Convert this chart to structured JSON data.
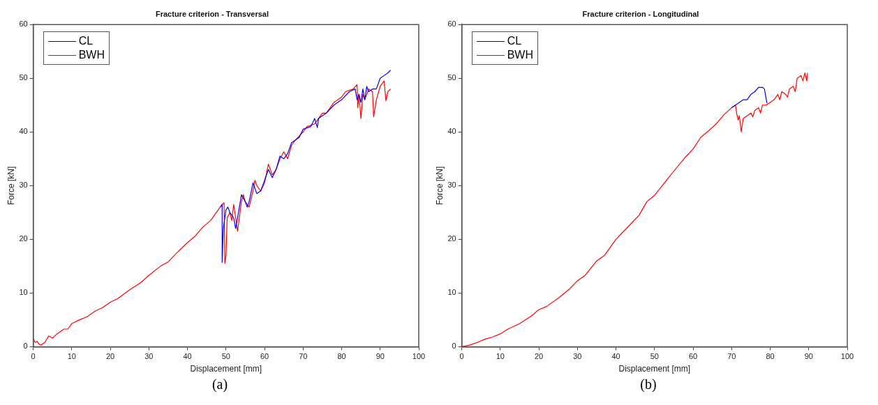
{
  "chart_data": [
    {
      "type": "line",
      "title": "Fracture criterion - Transversal",
      "xlabel": "Displacement [mm]",
      "ylabel": "Force [kN]",
      "annotations": [
        "(a)"
      ],
      "xlim": [
        0,
        100
      ],
      "xticks": [
        0,
        10,
        20,
        30,
        40,
        50,
        60,
        70,
        80,
        90,
        100
      ],
      "ylim": [
        0,
        60
      ],
      "yticks": [
        0,
        10,
        20,
        30,
        40,
        50,
        60
      ],
      "grid": false,
      "legend": "top left",
      "marker": "none",
      "line_style": "solid",
      "series": [
        {
          "name": "CL",
          "color": "#0000ff",
          "x": [
            48.5,
            49,
            49,
            49.3,
            50,
            50.5,
            51,
            52,
            52.5,
            53,
            54,
            55,
            55.5,
            56,
            57,
            58,
            59,
            60,
            61,
            62,
            63,
            64,
            65,
            66,
            67,
            69,
            70,
            72,
            73,
            73.7,
            74,
            76,
            78,
            80,
            82,
            83.5,
            84,
            84.5,
            85,
            85.5,
            86,
            86.5,
            87,
            88,
            89,
            90,
            91,
            92,
            92.7
          ],
          "values": [
            26,
            26.5,
            15.7,
            22,
            25.5,
            26,
            25,
            24,
            22,
            24,
            28.3,
            27,
            26,
            27,
            30.5,
            28.5,
            29,
            31,
            33,
            31.5,
            33,
            35.5,
            35,
            36,
            38,
            39,
            40.5,
            41,
            42.5,
            40.8,
            42.5,
            43.5,
            45,
            46,
            47.5,
            48,
            46,
            47,
            45.5,
            48,
            46,
            48.5,
            47.5,
            48,
            48,
            50,
            50.5,
            51,
            51.5
          ]
        },
        {
          "name": "BWH",
          "color": "#ff0000",
          "x": [
            0,
            0.5,
            1,
            1.5,
            2,
            3,
            4,
            5,
            6,
            8,
            9,
            10,
            12,
            14,
            16,
            18,
            20,
            22,
            25,
            28,
            30,
            33,
            35,
            37,
            40,
            42,
            44,
            46,
            48,
            49,
            49.5,
            49.7,
            50,
            50.3,
            51,
            51.5,
            52,
            53,
            54,
            54.5,
            55,
            56,
            57,
            57.5,
            58,
            59,
            60,
            61,
            62,
            63,
            64,
            65,
            66,
            67,
            68,
            70,
            71,
            73,
            75,
            76,
            78,
            80,
            81,
            83,
            84,
            84.2,
            84.5,
            85,
            85.5,
            86,
            87,
            88,
            88.3,
            89,
            90,
            91,
            91.5,
            92,
            92.7
          ],
          "values": [
            1.5,
            0.8,
            1,
            0.5,
            0.3,
            0.8,
            2,
            1.6,
            2.3,
            3.3,
            3.3,
            4.3,
            5,
            5.6,
            6.6,
            7.3,
            8.3,
            9,
            10.6,
            12,
            13.3,
            15,
            15.8,
            17.3,
            19.4,
            20.6,
            22.3,
            23.5,
            25.5,
            26.5,
            26.8,
            15.5,
            17,
            24,
            25,
            23.5,
            26.5,
            21.5,
            27,
            28.3,
            27,
            26,
            29,
            31,
            30,
            29,
            30.5,
            34,
            32,
            33,
            35,
            36.3,
            35,
            37.5,
            38.5,
            40,
            41,
            41.5,
            43.5,
            43.5,
            45.5,
            46.5,
            47.5,
            48,
            48.8,
            44.5,
            47,
            42.5,
            47,
            46,
            48,
            47.5,
            42.8,
            46,
            48.5,
            49.5,
            45.8,
            47.5,
            48
          ]
        }
      ]
    },
    {
      "type": "line",
      "title": "Fracture criterion - Longitudinal",
      "xlabel": "Displacement [mm]",
      "ylabel": "Force [kN]",
      "annotations": [
        "(b)"
      ],
      "xlim": [
        0,
        100
      ],
      "xticks": [
        0,
        10,
        20,
        30,
        40,
        50,
        60,
        70,
        80,
        90,
        100
      ],
      "ylim": [
        0,
        60
      ],
      "yticks": [
        0,
        10,
        20,
        30,
        40,
        50,
        60
      ],
      "grid": false,
      "legend": "top left",
      "marker": "none",
      "line_style": "solid",
      "series": [
        {
          "name": "CL",
          "color": "#0000ff",
          "x": [
            70,
            71,
            72,
            73,
            74,
            75,
            76,
            77,
            78,
            78.5,
            79,
            79.2
          ],
          "values": [
            44.5,
            45,
            45.5,
            46,
            46,
            47,
            47.5,
            48.3,
            48.3,
            48,
            46,
            45.3
          ]
        },
        {
          "name": "BWH",
          "color": "#ff0000",
          "x": [
            0,
            2,
            4,
            6,
            8,
            10,
            12,
            15,
            18,
            20,
            22,
            25,
            28,
            30,
            32,
            35,
            37,
            40,
            42,
            44,
            46,
            48,
            50,
            52,
            55,
            58,
            60,
            62,
            64,
            66,
            68,
            70,
            71,
            71.3,
            71.7,
            72,
            72.5,
            73,
            74,
            75,
            75.5,
            76,
            77,
            77.5,
            78,
            79,
            80,
            81,
            82,
            82.5,
            83,
            84,
            84.5,
            85,
            86,
            86.5,
            87,
            88,
            88.5,
            89,
            89.5,
            89.7
          ],
          "values": [
            0,
            0.3,
            0.8,
            1.4,
            1.8,
            2.4,
            3.3,
            4.3,
            5.7,
            6.9,
            7.5,
            9,
            10.8,
            12.3,
            13.3,
            16,
            17,
            20,
            21.5,
            23,
            24.5,
            27,
            28.2,
            30,
            32.7,
            35.3,
            36.8,
            39,
            40.2,
            41.5,
            43.2,
            44.5,
            45,
            43.5,
            42.2,
            43,
            40,
            42.5,
            43,
            43.5,
            42.8,
            44,
            44.5,
            43.5,
            45,
            45,
            45.5,
            46,
            47,
            46,
            47.5,
            47,
            46.5,
            48,
            48.5,
            47.5,
            50,
            50.5,
            49.5,
            51,
            49.5,
            51
          ]
        }
      ]
    }
  ]
}
